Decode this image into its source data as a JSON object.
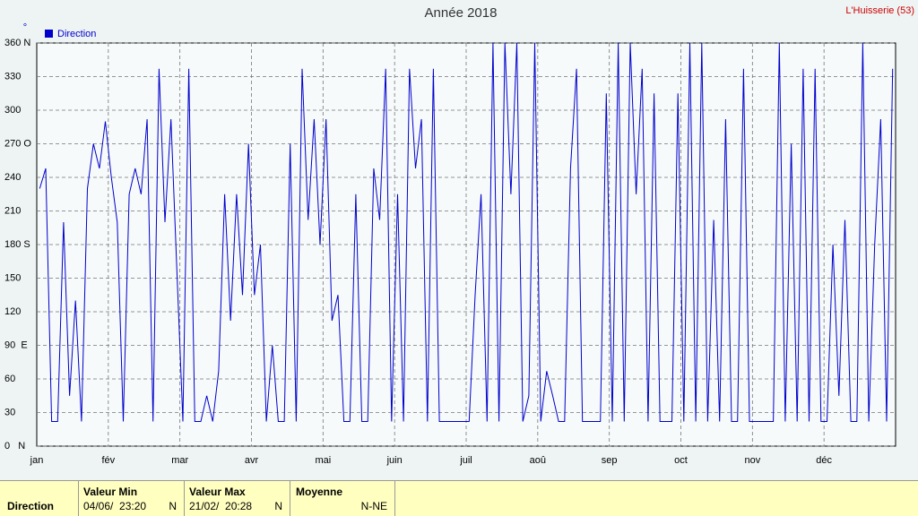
{
  "chart_data": {
    "type": "line",
    "title": "Année 2018",
    "station": "L'Huisserie (53)",
    "y_label": "°",
    "month_labels": [
      "jan",
      "fév",
      "mar",
      "avr",
      "mai",
      "juin",
      "juil",
      "aoû",
      "sep",
      "oct",
      "nov",
      "déc"
    ],
    "ylim": [
      0,
      360
    ],
    "yticks": [
      {
        "value": 0,
        "label": "0   N"
      },
      30,
      60,
      {
        "value": 90,
        "label": "90  E"
      },
      120,
      150,
      {
        "value": 180,
        "label": "180 S"
      },
      210,
      240,
      {
        "value": 270,
        "label": "270 O"
      },
      300,
      330,
      {
        "value": 360,
        "label": "360 N"
      }
    ],
    "grid": true,
    "legend": "top-left",
    "series": [
      {
        "name": "Direction",
        "color": "#0000cc",
        "values": [
          230,
          248,
          22,
          22,
          200,
          45,
          130,
          22,
          230,
          270,
          248,
          290,
          240,
          200,
          22,
          225,
          248,
          225,
          292,
          22,
          337,
          200,
          292,
          157,
          22,
          337,
          22,
          22,
          45,
          22,
          67,
          225,
          112,
          225,
          135,
          270,
          135,
          180,
          22,
          90,
          22,
          22,
          270,
          22,
          337,
          202,
          292,
          180,
          292,
          112,
          135,
          22,
          22,
          225,
          22,
          22,
          248,
          202,
          337,
          22,
          225,
          22,
          337,
          248,
          292,
          22,
          337,
          22,
          22,
          22,
          22,
          22,
          22,
          135,
          225,
          22,
          360,
          22,
          360,
          225,
          360,
          22,
          45,
          360,
          22,
          67,
          45,
          22,
          22,
          248,
          337,
          22,
          22,
          22,
          22,
          315,
          22,
          360,
          22,
          360,
          225,
          337,
          22,
          315,
          22,
          22,
          22,
          315,
          22,
          360,
          22,
          360,
          22,
          202,
          22,
          292,
          22,
          22,
          337,
          22,
          22,
          22,
          22,
          22,
          360,
          22,
          270,
          22,
          337,
          22,
          337,
          22,
          22,
          180,
          45,
          202,
          22,
          22,
          360,
          22,
          180,
          292,
          22,
          337
        ]
      }
    ]
  },
  "summary": {
    "row_label": "Direction",
    "min": {
      "header": "Valeur Min",
      "date": "04/06/  23:20",
      "dir": "N"
    },
    "max": {
      "header": "Valeur Max",
      "date": "21/02/  20:28",
      "dir": "N"
    },
    "mean": {
      "header": "Moyenne",
      "dir": "N-NE"
    }
  }
}
